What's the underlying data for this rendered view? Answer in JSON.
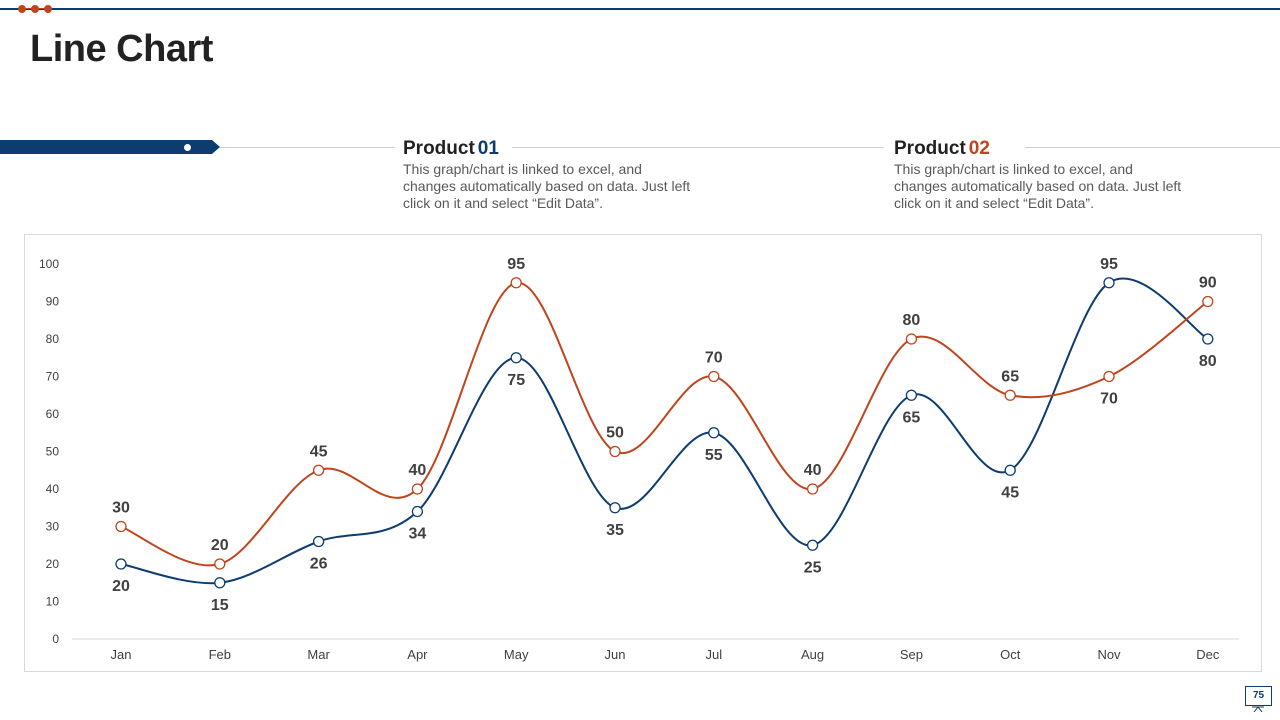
{
  "slide": {
    "title": "Line Chart",
    "page_number": "75"
  },
  "legend": [
    {
      "prefix": "Product",
      "number": "01",
      "description": "This graph/chart is linked to excel, and changes automatically based on data. Just left click on it and select “Edit Data”."
    },
    {
      "prefix": "Product",
      "number": "02",
      "description": "This graph/chart is linked to excel, and changes automatically based on data. Just left click on it and select “Edit Data”."
    }
  ],
  "colors": {
    "primary": "#0d3c6e",
    "accent": "#c0441c",
    "text": "#222222",
    "muted": "#595959"
  },
  "chart_data": {
    "type": "line",
    "title": "",
    "xlabel": "",
    "ylabel": "",
    "categories": [
      "Jan",
      "Feb",
      "Mar",
      "Apr",
      "May",
      "Jun",
      "Jul",
      "Aug",
      "Sep",
      "Oct",
      "Nov",
      "Dec"
    ],
    "ylim": [
      0,
      100
    ],
    "yticks": [
      0,
      10,
      20,
      30,
      40,
      50,
      60,
      70,
      80,
      90,
      100
    ],
    "grid": false,
    "series": [
      {
        "name": "Product 01",
        "color": "#0d3c6e",
        "values": [
          20,
          15,
          26,
          34,
          75,
          35,
          55,
          25,
          65,
          45,
          95,
          80
        ]
      },
      {
        "name": "Product 02",
        "color": "#c0441c",
        "values": [
          30,
          20,
          45,
          40,
          95,
          50,
          70,
          40,
          80,
          65,
          70,
          90
        ]
      }
    ]
  }
}
